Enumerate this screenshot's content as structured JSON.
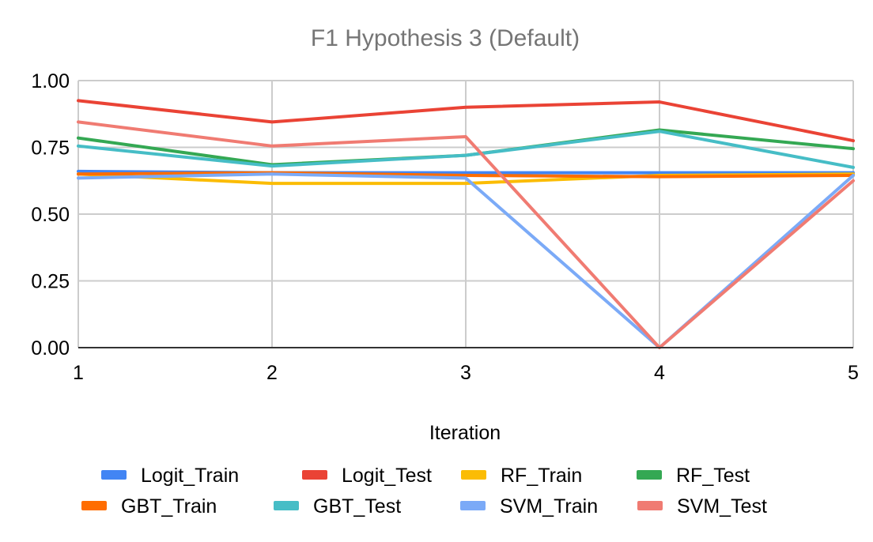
{
  "chart_data": {
    "type": "line",
    "title": "F1 Hypothesis 3 (Default)",
    "xlabel": "Iteration",
    "ylabel": "",
    "x": [
      1,
      2,
      3,
      4,
      5
    ],
    "x_tick_labels": [
      "1",
      "2",
      "3",
      "4",
      "5"
    ],
    "y_tick_labels": [
      "0.00",
      "0.25",
      "0.50",
      "0.75",
      "1.00"
    ],
    "y_ticks": [
      0,
      0.25,
      0.5,
      0.75,
      1.0
    ],
    "ylim": [
      0,
      1
    ],
    "grid": true,
    "legend_position": "bottom",
    "series": [
      {
        "name": "Logit_Train",
        "color": "#4285F4",
        "values": [
          0.66,
          0.655,
          0.655,
          0.655,
          0.655
        ]
      },
      {
        "name": "Logit_Test",
        "color": "#EA4335",
        "values": [
          0.925,
          0.845,
          0.9,
          0.92,
          0.775
        ]
      },
      {
        "name": "RF_Train",
        "color": "#FBBC04",
        "values": [
          0.65,
          0.615,
          0.615,
          0.645,
          0.65
        ]
      },
      {
        "name": "RF_Test",
        "color": "#34A853",
        "values": [
          0.785,
          0.685,
          0.72,
          0.815,
          0.745
        ]
      },
      {
        "name": "GBT_Train",
        "color": "#FF6D01",
        "values": [
          0.65,
          0.655,
          0.645,
          0.64,
          0.645
        ]
      },
      {
        "name": "GBT_Test",
        "color": "#46BDC6",
        "values": [
          0.755,
          0.68,
          0.72,
          0.81,
          0.675
        ]
      },
      {
        "name": "SVM_Train",
        "color": "#7BAAF7",
        "values": [
          0.635,
          0.65,
          0.635,
          0.0,
          0.645
        ]
      },
      {
        "name": "SVM_Test",
        "color": "#F07B72",
        "values": [
          0.845,
          0.755,
          0.79,
          0.0,
          0.625
        ]
      }
    ]
  }
}
